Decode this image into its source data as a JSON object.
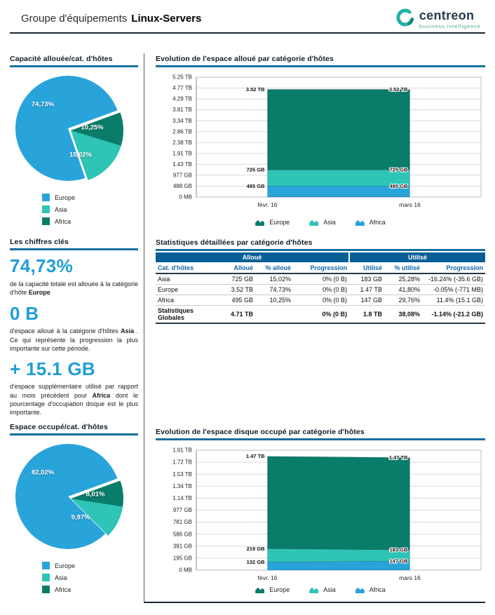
{
  "header": {
    "title_prefix": "Groupe d'équipements",
    "title_name": "Linux-Servers",
    "logo": {
      "brand": "centreon",
      "tagline": "business intelligence"
    }
  },
  "sections": {
    "pie_allocated_title": "Capacité allouée/cat. d'hôtes",
    "key_figures_title": "Les chiffres clés",
    "pie_used_title": "Espace occupé/cat. d'hôtes",
    "chart_allocated_title": "Evolution de l'espace alloué par catégorie d'hôtes",
    "table_title": "Statistiques détaillées par catégorie d'hôtes",
    "chart_used_title": "Evolution de l'espace disque occupé par catégorie d'hôtes"
  },
  "key_figures": [
    {
      "value": "74,73%",
      "before": "de la capacité totale est allouée à la catégorie d'hôte ",
      "bold": "Europe",
      "after": ""
    },
    {
      "value": "0 B",
      "before": "d'espace alloué à la catégorie d'hôtes ",
      "bold": "Asia",
      "after": " . Ce qui représente la progression la plus importante sur cette période."
    },
    {
      "value": "+ 15.1 GB",
      "before": "d'espace supplémentaire utilisé par rapport au mois précédent pour ",
      "bold": "Africa",
      "after": " dont le pourcentage d'occupation disque est le plus importante."
    }
  ],
  "stats_table": {
    "group_headers": [
      "Alloué",
      "Utilisé"
    ],
    "columns": [
      "Cat. d'hôtes",
      "Alloué",
      "% alloué",
      "Progression",
      "Utilisé",
      "% utilisé",
      "Progression"
    ],
    "rows": [
      [
        "Asia",
        "725 GB",
        "15,02%",
        "0% (0 B)",
        "183 GB",
        "25,28%",
        "-16.24% (-35.6 GB)"
      ],
      [
        "Europe",
        "3.52 TB",
        "74,73%",
        "0% (0 B)",
        "1.47 TB",
        "41,80%",
        "-0.05% (-771 MB)"
      ],
      [
        "Africa",
        "495 GB",
        "10,25%",
        "0% (0 B)",
        "147 GB",
        "29,76%",
        "11.4% (15.1 GB)"
      ]
    ],
    "totals": [
      "Statistiques Globales",
      "4.71 TB",
      "",
      "0% (0 B)",
      "1.8 TB",
      "38,08%",
      "-1.14% (-21.2 GB)"
    ]
  },
  "colors": {
    "accent_blue": "#1f9ed9",
    "table_header_bg": "#0a5f96",
    "section_underline": "#1a6f9e",
    "europe_pie": "#29a4da",
    "asia": "#2ec4b6",
    "africa_pie": "#0a7c6a"
  },
  "chart_data": [
    {
      "type": "pie",
      "title": "Capacité allouée/cat. d'hôtes",
      "start_angle": 70,
      "slices": [
        {
          "label": "Africa",
          "value": 10.25,
          "display": "10,25%",
          "color": "#0a7c6a",
          "explode": true,
          "label_pos": [
            73,
            49
          ]
        },
        {
          "label": "Asia",
          "value": 15.02,
          "display": "15,02%",
          "color": "#2ec4b6",
          "explode": true,
          "label_pos": [
            62,
            75
          ]
        },
        {
          "label": "Europe",
          "value": 74.73,
          "display": "74,73%",
          "color": "#29a4da",
          "explode": false,
          "label_pos": [
            26,
            27
          ]
        }
      ],
      "legend": [
        {
          "label": "Europe",
          "color": "#29a4da"
        },
        {
          "label": "Asia",
          "color": "#2ec4b6"
        },
        {
          "label": "Africa",
          "color": "#0a7c6a"
        }
      ]
    },
    {
      "type": "area",
      "title": "Evolution de l'espace alloué par catégorie d'hôtes",
      "x_labels": [
        "févr. 16",
        "mars 16"
      ],
      "y_ticks": [
        "0 MB",
        "488 GB",
        "977 GB",
        "1.43 TB",
        "1.91 TB",
        "2.38 TB",
        "2.86 TB",
        "3.34 TB",
        "3.81 TB",
        "4.29 TB",
        "4.77 TB",
        "5.25 TB"
      ],
      "y_max_gb": 5376,
      "series": [
        {
          "name": "Africa",
          "color": "#29a4da",
          "values_gb": [
            495,
            495
          ],
          "labels": [
            "495 GB",
            "495 GB"
          ]
        },
        {
          "name": "Asia",
          "color": "#2ec4b6",
          "values_gb": [
            725,
            725
          ],
          "labels": [
            "725 GB",
            "725 GB"
          ]
        },
        {
          "name": "Europe",
          "color": "#0a7c6a",
          "values_gb": [
            3604,
            3604
          ],
          "labels": [
            "3.52 TB",
            "3.52 TB"
          ]
        }
      ],
      "legend": [
        {
          "label": "Europe",
          "color": "#0a7c6a"
        },
        {
          "label": "Asia",
          "color": "#2ec4b6"
        },
        {
          "label": "Africa",
          "color": "#29a4da"
        }
      ]
    },
    {
      "type": "pie",
      "title": "Espace occupé/cat. d'hôtes",
      "start_angle": 70,
      "slices": [
        {
          "label": "Africa",
          "value": 8.01,
          "display": "8,01%",
          "color": "#0a7c6a",
          "explode": true,
          "label_pos": [
            76,
            48
          ]
        },
        {
          "label": "Asia",
          "value": 9.97,
          "display": "9,97%",
          "color": "#2ec4b6",
          "explode": true,
          "label_pos": [
            62,
            70
          ]
        },
        {
          "label": "Europe",
          "value": 82.02,
          "display": "82,02%",
          "color": "#29a4da",
          "explode": false,
          "label_pos": [
            26,
            27
          ]
        }
      ],
      "legend": [
        {
          "label": "Europe",
          "color": "#29a4da"
        },
        {
          "label": "Asia",
          "color": "#2ec4b6"
        },
        {
          "label": "Africa",
          "color": "#0a7c6a"
        }
      ]
    },
    {
      "type": "area",
      "title": "Evolution de l'espace disque occupé par catégorie d'hôtes",
      "x_labels": [
        "févr. 16",
        "mars 16"
      ],
      "y_ticks": [
        "0 MB",
        "195 GB",
        "391 GB",
        "586 GB",
        "781 GB",
        "977 GB",
        "1.14 TB",
        "1.34 TB",
        "1.53 TB",
        "1.72 TB",
        "1.91 TB"
      ],
      "y_max_gb": 1956,
      "series": [
        {
          "name": "Africa",
          "color": "#29a4da",
          "values_gb": [
            132,
            147
          ],
          "labels": [
            "132 GB",
            "147 GB"
          ]
        },
        {
          "name": "Asia",
          "color": "#2ec4b6",
          "values_gb": [
            219,
            183
          ],
          "labels": [
            "219 GB",
            "183 GB"
          ]
        },
        {
          "name": "Europe",
          "color": "#0a7c6a",
          "values_gb": [
            1505,
            1505
          ],
          "labels": [
            "1.47 TB",
            "1.47 TB"
          ]
        }
      ],
      "legend": [
        {
          "label": "Europe",
          "color": "#0a7c6a"
        },
        {
          "label": "Asia",
          "color": "#2ec4b6"
        },
        {
          "label": "Africa",
          "color": "#29a4da"
        }
      ]
    }
  ]
}
